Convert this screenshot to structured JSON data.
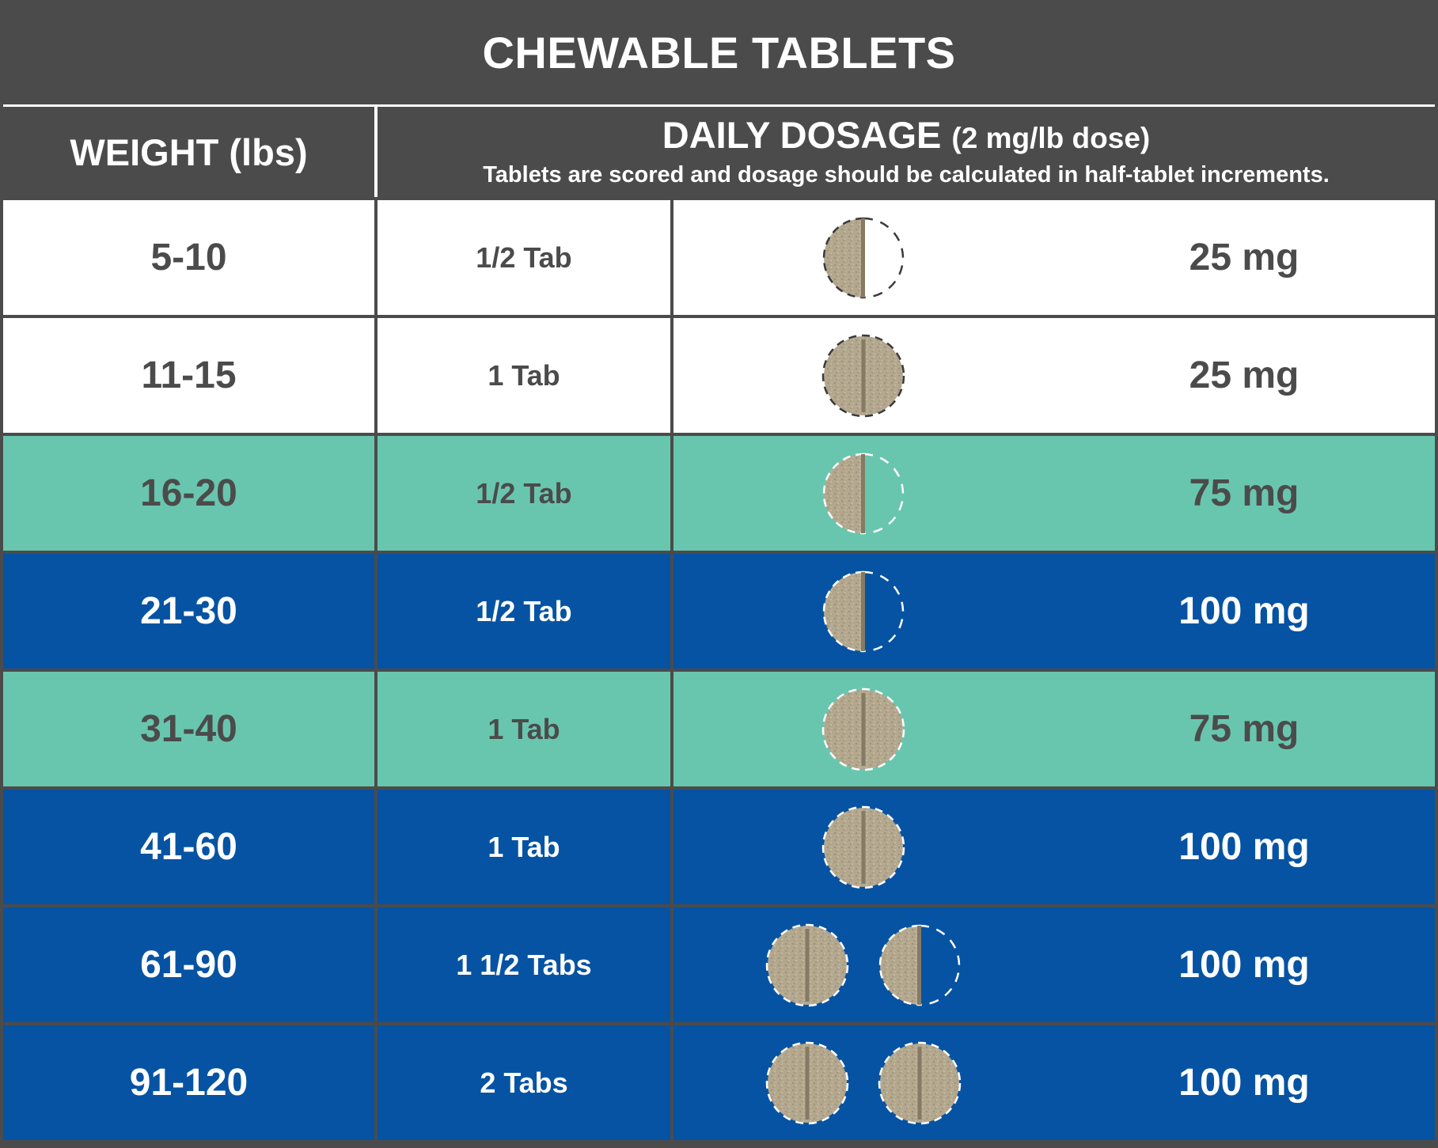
{
  "title": "CHEWABLE TABLETS",
  "header": {
    "weight_label": "WEIGHT (lbs)",
    "dosage_label": "DAILY DOSAGE",
    "dosage_sub": "(2 mg/lb dose)",
    "dosage_note": "Tablets are scored and dosage should be calculated in half-tablet increments."
  },
  "colors": {
    "header_gray": "#4b4b4b",
    "teal": "#69c6ae",
    "blue": "#0653a3",
    "white": "#ffffff",
    "tablet": "#b3a78e"
  },
  "rows": [
    {
      "weight": "5-10",
      "tabs": "1/2 Tab",
      "mg": "25 mg",
      "theme": "white",
      "pills": [
        "half"
      ]
    },
    {
      "weight": "11-15",
      "tabs": "1 Tab",
      "mg": "25 mg",
      "theme": "white",
      "pills": [
        "full"
      ]
    },
    {
      "weight": "16-20",
      "tabs": "1/2 Tab",
      "mg": "75 mg",
      "theme": "teal",
      "pills": [
        "half"
      ]
    },
    {
      "weight": "21-30",
      "tabs": "1/2 Tab",
      "mg": "100 mg",
      "theme": "blue",
      "pills": [
        "half"
      ]
    },
    {
      "weight": "31-40",
      "tabs": "1 Tab",
      "mg": "75 mg",
      "theme": "teal",
      "pills": [
        "full"
      ]
    },
    {
      "weight": "41-60",
      "tabs": "1 Tab",
      "mg": "100 mg",
      "theme": "blue",
      "pills": [
        "full"
      ]
    },
    {
      "weight": "61-90",
      "tabs": "1  1/2 Tabs",
      "mg": "100 mg",
      "theme": "blue",
      "pills": [
        "full",
        "half"
      ]
    },
    {
      "weight": "91-120",
      "tabs": "2 Tabs",
      "mg": "100 mg",
      "theme": "blue",
      "pills": [
        "full",
        "full"
      ]
    }
  ]
}
